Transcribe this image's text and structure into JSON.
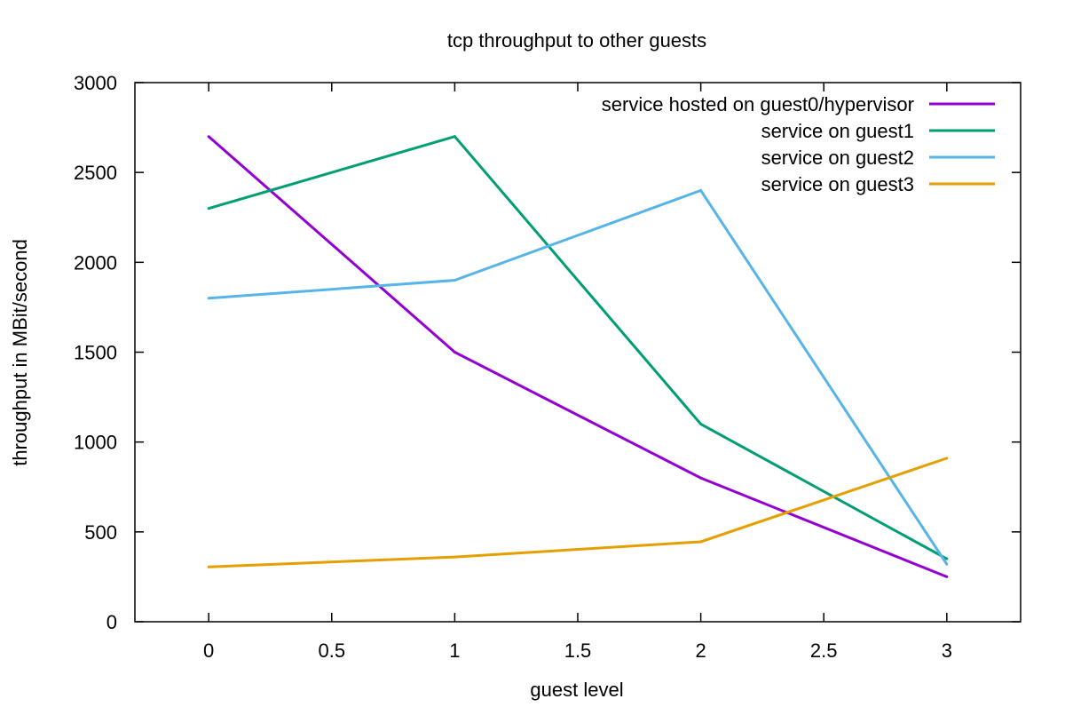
{
  "chart_data": {
    "type": "line",
    "title": "tcp throughput to other guests",
    "xlabel": "guest level",
    "ylabel": "throughput in MBit/second",
    "xlim": [
      -0.3,
      3.3
    ],
    "ylim": [
      0,
      3000
    ],
    "xticks": [
      "0",
      "0.5",
      "1",
      "1.5",
      "2",
      "2.5",
      "3"
    ],
    "yticks": [
      "0",
      "500",
      "1000",
      "1500",
      "2000",
      "2500",
      "3000"
    ],
    "grid": false,
    "legend_position": "top-right",
    "x": [
      0,
      1,
      2,
      3
    ],
    "series": [
      {
        "name": "service hosted on guest0/hypervisor",
        "color": "#9400d3",
        "values": [
          2700,
          1500,
          800,
          250
        ]
      },
      {
        "name": "service on guest1",
        "color": "#009e73",
        "values": [
          2300,
          2700,
          1100,
          350
        ]
      },
      {
        "name": "service on guest2",
        "color": "#56b4e9",
        "values": [
          1800,
          1900,
          2400,
          320
        ]
      },
      {
        "name": "service on guest3",
        "color": "#e69f00",
        "values": [
          305,
          360,
          445,
          910
        ]
      }
    ]
  }
}
